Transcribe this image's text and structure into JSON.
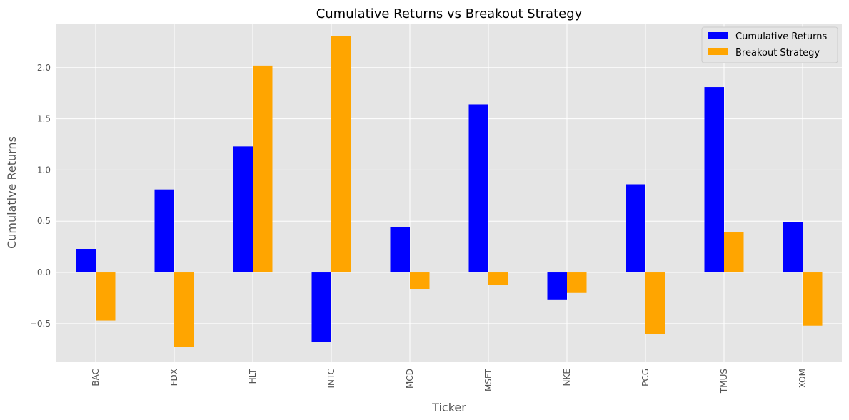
{
  "chart_data": {
    "type": "bar",
    "title": "Cumulative Returns vs Breakout Strategy",
    "xlabel": "Ticker",
    "ylabel": "Cumulative Returns",
    "categories": [
      "BAC",
      "FDX",
      "HLT",
      "INTC",
      "MCD",
      "MSFT",
      "NKE",
      "PCG",
      "TMUS",
      "XOM"
    ],
    "series": [
      {
        "name": "Cumulative Returns",
        "color": "#0000ff",
        "values": [
          0.23,
          0.81,
          1.23,
          -0.68,
          0.44,
          1.64,
          -0.27,
          0.86,
          1.81,
          0.49
        ]
      },
      {
        "name": "Breakout Strategy",
        "color": "#ffa500",
        "values": [
          -0.47,
          -0.73,
          2.02,
          2.31,
          -0.16,
          -0.12,
          -0.2,
          -0.6,
          0.39,
          -0.52
        ]
      }
    ],
    "ylim": [
      -0.87,
      2.43
    ],
    "yticks": [
      -0.5,
      0.0,
      0.5,
      1.0,
      1.5,
      2.0
    ],
    "ytick_labels": [
      "−0.5",
      "0.0",
      "0.5",
      "1.0",
      "1.5",
      "2.0"
    ],
    "grid": true,
    "legend_position": "top-right",
    "plot_background": "#e5e5e5",
    "grid_color": "#ffffff"
  }
}
